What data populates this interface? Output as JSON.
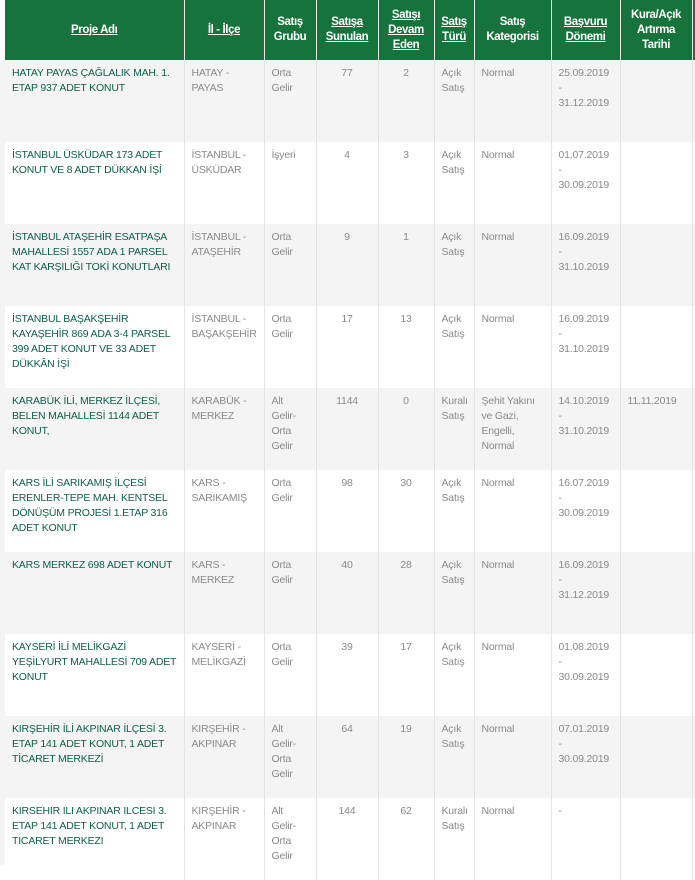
{
  "headers": [
    {
      "label": "Proje Adı",
      "link": true
    },
    {
      "label": "İl - İlçe",
      "link": true
    },
    {
      "label": "Satış Grubu",
      "link": false
    },
    {
      "label": "Satışa Sunulan",
      "link": true
    },
    {
      "label": "Satışı Devam Eden",
      "link": true
    },
    {
      "label": "Satış Türü",
      "link": true
    },
    {
      "label": "Satış Kategorisi",
      "link": false
    },
    {
      "label": "Başvuru Dönemi",
      "link": true
    },
    {
      "label": "Kura/Açık Artırma Tarihi",
      "link": false
    }
  ],
  "rows": [
    {
      "proje": "HATAY PAYAS ÇAĞLALIK MAH. 1. ETAP 937 ADET KONUT",
      "il": "HATAY - PAYAS",
      "grup": "Orta Gelir",
      "sunulan": "77",
      "devam": "2",
      "tur": "Açık Satış",
      "kategori": "Normal",
      "donem": "25.09.2019 - 31.12.2019",
      "kura": ""
    },
    {
      "proje": "İSTANBUL ÜSKÜDAR 173 ADET KONUT VE 8 ADET DÜKKAN İŞİ",
      "il": "İSTANBUL - ÜSKÜDAR",
      "grup": "İşyeri",
      "sunulan": "4",
      "devam": "3",
      "tur": "Açık Satış",
      "kategori": "Normal",
      "donem": "01.07.2019 - 30.09.2019",
      "kura": ""
    },
    {
      "proje": "İSTANBUL ATAŞEHİR ESATPAŞA MAHALLESİ 1557 ADA 1 PARSEL KAT KARŞILIĞI TOKİ KONUTLARI",
      "il": "İSTANBUL - ATAŞEHİR",
      "grup": "Orta Gelir",
      "sunulan": "9",
      "devam": "1",
      "tur": "Açık Satış",
      "kategori": "Normal",
      "donem": "16.09.2019 - 31.10.2019",
      "kura": ""
    },
    {
      "proje": "İSTANBUL BAŞAKŞEHİR KAYAŞEHİR 869 ADA 3-4 PARSEL 399 ADET KONUT VE 33 ADET DÜKKÂN İŞİ",
      "il": "İSTANBUL - BAŞAKŞEHİR",
      "grup": "Orta Gelir",
      "sunulan": "17",
      "devam": "13",
      "tur": "Açık Satış",
      "kategori": "Normal",
      "donem": "16.09.2019 - 31.10.2019",
      "kura": ""
    },
    {
      "proje": "KARABÜK İLİ, MERKEZ İLÇESİ, BELEN MAHALLESİ 1144 ADET KONUT,",
      "il": "KARABÜK - MERKEZ",
      "grup": "Alt Gelir-Orta Gelir",
      "sunulan": "1144",
      "devam": "0",
      "tur": "Kuralı Satış",
      "kategori": "Şehit Yakını ve Gazi, Engelli, Normal",
      "donem": "14.10.2019 - 31.10.2019",
      "kura": "11.11.2019"
    },
    {
      "proje": "KARS İLİ SARIKAMIŞ İLÇESİ ERENLER-TEPE MAH. KENTSEL DÖNÜŞÜM PROJESİ 1.ETAP 316 ADET KONUT",
      "il": "KARS - SARIKAMIŞ",
      "grup": "Orta Gelir",
      "sunulan": "98",
      "devam": "30",
      "tur": "Açık Satış",
      "kategori": "Normal",
      "donem": "16.07.2019 - 30.09.2019",
      "kura": ""
    },
    {
      "proje": "KARS MERKEZ 698 ADET KONUT",
      "il": "KARS - MERKEZ",
      "grup": "Orta Gelir",
      "sunulan": "40",
      "devam": "28",
      "tur": "Açık Satış",
      "kategori": "Normal",
      "donem": "16.09.2019 - 31.12.2019",
      "kura": ""
    },
    {
      "proje": "KAYSERİ İLİ MELİKGAZİ YEŞİLYURT MAHALLESİ 709 ADET KONUT",
      "il": "KAYSERİ - MELİKGAZİ",
      "grup": "Orta Gelir",
      "sunulan": "39",
      "devam": "17",
      "tur": "Açık Satış",
      "kategori": "Normal",
      "donem": "01.08.2019 - 30.09.2019",
      "kura": ""
    },
    {
      "proje": "KIRŞEHİR İLİ AKPINAR İLÇESİ 3. ETAP 141 ADET KONUT, 1 ADET TİCARET MERKEZİ",
      "il": "KIRŞEHİR - AKPINAR",
      "grup": "Alt Gelir-Orta Gelir",
      "sunulan": "64",
      "devam": "19",
      "tur": "Açık Satış",
      "kategori": "Normal",
      "donem": "07.01.2019 - 30.09.2019",
      "kura": ""
    },
    {
      "proje": "KIRSEHIR ILI AKPINAR ILCESI 3. ETAP 141 ADET KONUT, 1 ADET TICARET MERKEZI",
      "il": "KIRŞEHİR - AKPINAR",
      "grup": "Alt Gelir-Orta Gelir",
      "sunulan": "144",
      "devam": "62",
      "tur": "Kuralı Satış",
      "kategori": "Normal",
      "donem": "-",
      "kura": ""
    }
  ],
  "colors": {
    "header_bg": "#17733c",
    "project_text": "#0d5e4b",
    "cell_text": "#8a8a8a",
    "row_alt": "#f4f4f4"
  }
}
